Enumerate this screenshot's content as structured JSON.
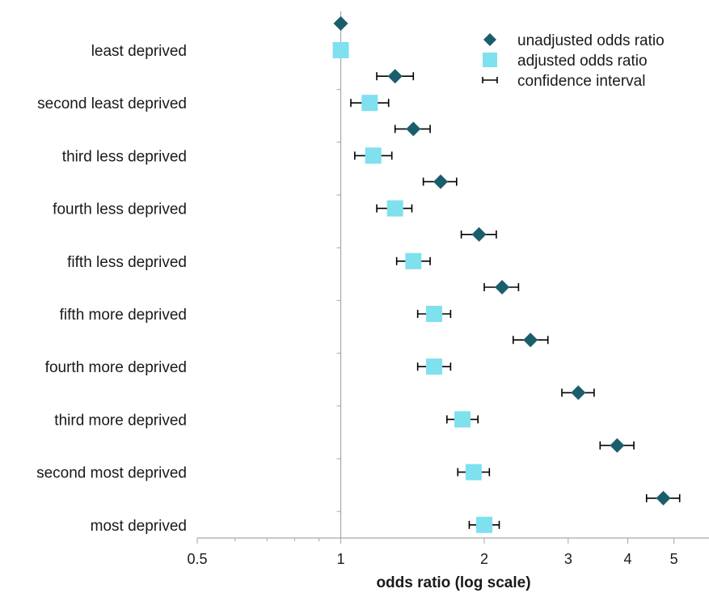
{
  "chart_data": {
    "type": "scatter",
    "xlabel": "odds ratio (log scale)",
    "x_scale": "log",
    "xlim": [
      0.5,
      6
    ],
    "x_ticks": [
      0.5,
      1,
      2,
      3,
      4,
      5
    ],
    "x_tick_labels": [
      "0.5",
      "1",
      "2",
      "3",
      "4",
      "5"
    ],
    "categories": [
      "least deprived",
      "second least deprived",
      "third less deprived",
      "fourth less deprived",
      "fifth less deprived",
      "fifth more deprived",
      "fourth more deprived",
      "third more deprived",
      "second most deprived",
      "most deprived"
    ],
    "series": [
      {
        "name": "unadjusted odds ratio",
        "marker": "diamond",
        "color": "#1b5e6b",
        "values": [
          1.0,
          1.3,
          1.42,
          1.62,
          1.95,
          2.18,
          2.5,
          3.15,
          3.8,
          4.75
        ],
        "ci_low": [
          null,
          1.19,
          1.3,
          1.49,
          1.79,
          2.0,
          2.3,
          2.91,
          3.5,
          4.38
        ],
        "ci_high": [
          null,
          1.42,
          1.54,
          1.75,
          2.12,
          2.36,
          2.72,
          3.4,
          4.12,
          5.14
        ]
      },
      {
        "name": "adjusted odds ratio",
        "marker": "square",
        "color": "#7fe0ee",
        "values": [
          1.0,
          1.15,
          1.17,
          1.3,
          1.42,
          1.57,
          1.57,
          1.8,
          1.9,
          2.0
        ],
        "ci_low": [
          null,
          1.05,
          1.07,
          1.19,
          1.31,
          1.45,
          1.45,
          1.67,
          1.76,
          1.86
        ],
        "ci_high": [
          null,
          1.26,
          1.28,
          1.41,
          1.54,
          1.7,
          1.7,
          1.94,
          2.05,
          2.15
        ]
      }
    ],
    "legend": {
      "position": "top-right",
      "entries": [
        {
          "label": "unadjusted odds ratio",
          "marker": "diamond",
          "color": "#1b5e6b"
        },
        {
          "label": "adjusted odds ratio",
          "marker": "square",
          "color": "#7fe0ee"
        },
        {
          "label": "confidence interval",
          "marker": "errorbar",
          "color": "#000000"
        }
      ]
    },
    "grid": false,
    "reference_line_x": 1,
    "errorbar_color": "#000000",
    "axis_color": "#a6a6a6"
  }
}
